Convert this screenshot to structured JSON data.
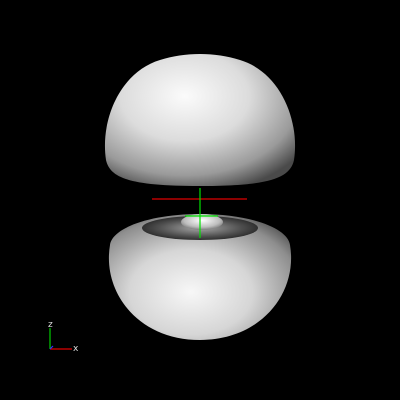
{
  "viewport": {
    "background": "#000000"
  },
  "surface": {
    "color": "#d8d8d8",
    "highlight": "#fafafa",
    "shadow": "#3a3a3a",
    "lobes": [
      "upper-lobe",
      "lower-lobe"
    ],
    "inner_feature": "torus-bowl"
  },
  "center_axes": {
    "x_color": "#e00000",
    "y_color": "#00e000",
    "z_color": "#00e000"
  },
  "orientation_triad": {
    "x_label": "x",
    "z_label": "z",
    "x_color": "#e00000",
    "z_color": "#00cc00",
    "y_color": "#0000ff"
  }
}
